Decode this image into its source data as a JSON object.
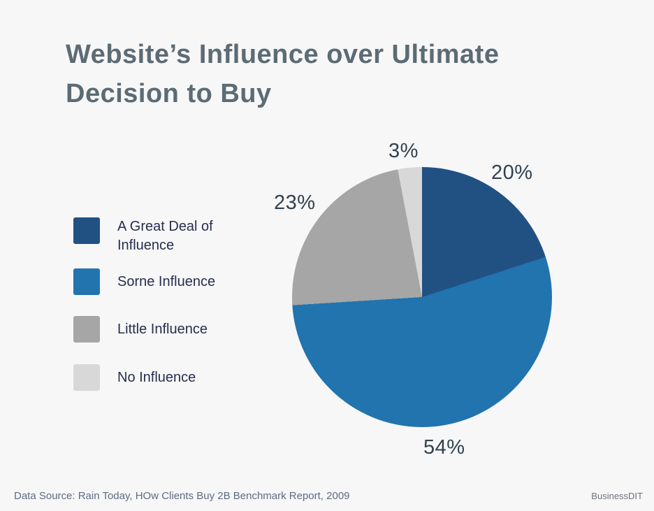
{
  "header": {
    "title_line1": "Website’s Influence over Ultimate",
    "title_line2": "Decision to Buy"
  },
  "chart_data": {
    "type": "pie",
    "title": "Website’s Influence over Ultimate Decision to Buy",
    "start_angle_deg": 0,
    "direction": "clockwise",
    "legend_position": "left",
    "data_labels": "percent, outside",
    "slices": [
      {
        "label": "A Great Deal of Influence",
        "value": 20,
        "percent_label": "20%",
        "color": "#215183"
      },
      {
        "label": "Sorne Influence",
        "value": 54,
        "percent_label": "54%",
        "color": "#2174AE"
      },
      {
        "label": "Little Influence",
        "value": 23,
        "percent_label": "23%",
        "color": "#A6A6A6"
      },
      {
        "label": "No Influence",
        "value": 3,
        "percent_label": "3%",
        "color": "#D8D8D8"
      }
    ]
  },
  "colors": {
    "background": "#F7F7F8",
    "title_text": "#5C6B74",
    "legend_text": "#262E4D",
    "percent_text": "#31424F",
    "footer_text": "#5C6C84",
    "brand_text": "#6E737B"
  },
  "footer": {
    "source": "Data Source: Rain Today, HOw Clients Buy 2B Benchmark Report, 2009",
    "brand": "BusinessDIT"
  }
}
